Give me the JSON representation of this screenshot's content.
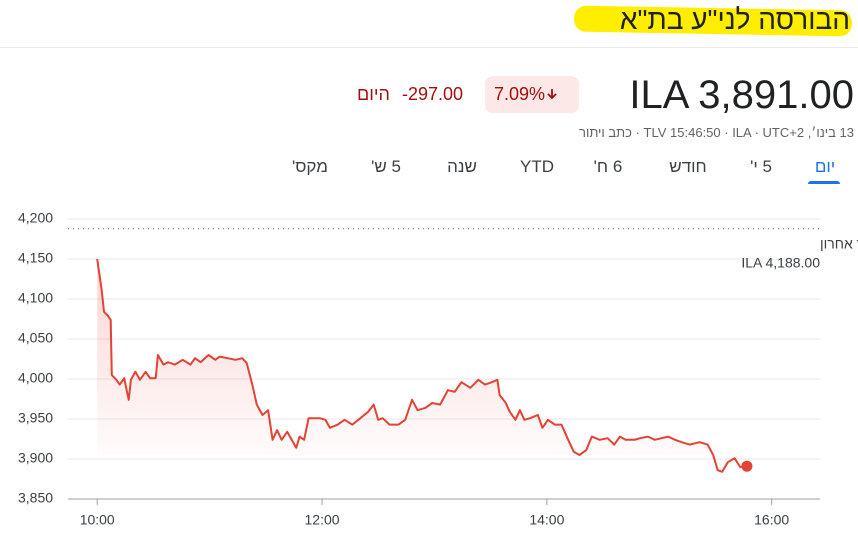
{
  "header": {
    "title": "הבורסה לני\"ע בת\"א",
    "price": "ILA 3,891.00",
    "change_percent": "7.09%",
    "change": "-297.00",
    "period": "היום",
    "meta": "13 בינו׳, TLV 15:46:50 · ILA · UTC+2 · כתב ויתור"
  },
  "tabs": [
    "יום",
    "5 י'",
    "חודש",
    "6 ח'",
    "YTD",
    "שנה",
    "5 ש'",
    "מקס'"
  ],
  "chart_data": {
    "type": "line",
    "x": [
      10.0,
      10.04,
      10.06,
      10.09,
      10.12,
      10.13,
      10.17,
      10.2,
      10.24,
      10.28,
      10.3,
      10.34,
      10.38,
      10.43,
      10.47,
      10.52,
      10.54,
      10.59,
      10.63,
      10.69,
      10.76,
      10.83,
      10.87,
      10.92,
      10.99,
      11.05,
      11.09,
      11.16,
      11.23,
      11.29,
      11.33,
      11.38,
      11.42,
      11.47,
      11.52,
      11.56,
      11.6,
      11.64,
      11.69,
      11.73,
      11.77,
      11.8,
      11.84,
      11.88,
      11.92,
      11.98,
      12.03,
      12.07,
      12.14,
      12.2,
      12.27,
      12.34,
      12.41,
      12.46,
      12.5,
      12.54,
      12.6,
      12.68,
      12.74,
      12.8,
      12.85,
      12.92,
      12.98,
      13.05,
      13.12,
      13.18,
      13.24,
      13.32,
      13.39,
      13.45,
      13.51,
      13.56,
      13.58,
      13.63,
      13.67,
      13.72,
      13.76,
      13.8,
      13.85,
      13.92,
      13.96,
      14.01,
      14.07,
      14.13,
      14.19,
      14.24,
      14.29,
      14.35,
      14.4,
      14.47,
      14.54,
      14.6,
      14.65,
      14.7,
      14.78,
      14.83,
      14.9,
      14.96,
      15.02,
      15.08,
      15.14,
      15.2,
      15.27,
      15.36,
      15.43,
      15.48,
      15.52,
      15.56,
      15.61,
      15.67,
      15.72,
      15.78
    ],
    "series": [
      {
        "color": "#e34234",
        "values": [
          4150,
          4111,
          4084,
          4080,
          4074,
          4005,
          3999,
          3993,
          4001,
          3974,
          3999,
          4009,
          3999,
          4009,
          4001,
          4001,
          4030,
          4018,
          4021,
          4018,
          4024,
          4018,
          4026,
          4021,
          4030,
          4024,
          4028,
          4026,
          4024,
          4026,
          4020,
          3993,
          3968,
          3955,
          3961,
          3924,
          3936,
          3924,
          3934,
          3924,
          3914,
          3928,
          3924,
          3951,
          3951,
          3951,
          3949,
          3939,
          3943,
          3949,
          3943,
          3951,
          3959,
          3968,
          3949,
          3951,
          3943,
          3943,
          3949,
          3974,
          3961,
          3964,
          3970,
          3968,
          3986,
          3984,
          3996,
          3989,
          3999,
          3993,
          3996,
          3999,
          3980,
          3971,
          3959,
          3949,
          3961,
          3949,
          3951,
          3955,
          3939,
          3949,
          3943,
          3943,
          3924,
          3909,
          3905,
          3911,
          3928,
          3924,
          3926,
          3918,
          3928,
          3924,
          3924,
          3926,
          3928,
          3924,
          3926,
          3928,
          3924,
          3921,
          3918,
          3921,
          3918,
          3905,
          3886,
          3884,
          3896,
          3901,
          3890,
          3891
        ]
      }
    ],
    "xlim": [
      9.74,
      16.43
    ],
    "xticks": [
      {
        "value": 10,
        "label": "10:00"
      },
      {
        "value": 12,
        "label": "12:00"
      },
      {
        "value": 14,
        "label": "14:00"
      },
      {
        "value": 16,
        "label": "16:00"
      }
    ],
    "ylim": [
      3850,
      4200
    ],
    "yticks": [
      {
        "value": 3850,
        "label": "3,850"
      },
      {
        "value": 3900,
        "label": "3,900"
      },
      {
        "value": 3950,
        "label": "3,950"
      },
      {
        "value": 4000,
        "label": "4,000"
      },
      {
        "value": 4050,
        "label": "4,050"
      },
      {
        "value": 4100,
        "label": "4,100"
      },
      {
        "value": 4150,
        "label": "4,150"
      },
      {
        "value": 4200,
        "label": "4,200"
      }
    ],
    "grid": true,
    "reference": {
      "value": 4188,
      "label": "שער אחרון",
      "value_label": "ILA 4,188.00"
    }
  }
}
